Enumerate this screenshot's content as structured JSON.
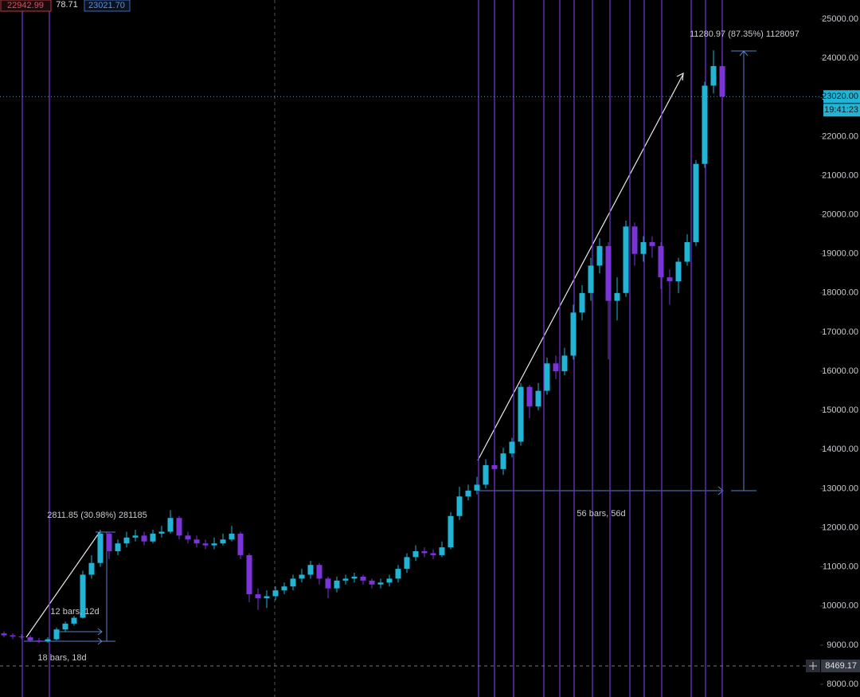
{
  "chart_data": {
    "type": "candlestick",
    "header": {
      "low": "22942.99",
      "change": "78.71",
      "high": "23021.70"
    },
    "annotations": {
      "big_move": "11280.97 (87.35%) 1128097",
      "big_bars": "56 bars, 56d",
      "small_move": "2811.85 (30.98%) 281185",
      "small_bars": "12 bars, 12d",
      "range_bars": "18 bars, 18d"
    },
    "last_price": {
      "value": 23020,
      "label": "23020.00"
    },
    "countdown": "19:41:23",
    "crosshair_price": 8469.17,
    "up_color": "#22b4d4",
    "down_color": "#7a34d8",
    "ylim": [
      8000,
      25000
    ],
    "yticks": [
      {
        "value": 8000,
        "label": "8000.00"
      },
      {
        "value": 9000,
        "label": "9000.00"
      },
      {
        "value": 10000,
        "label": "10000.00"
      },
      {
        "value": 11000,
        "label": "11000.00"
      },
      {
        "value": 12000,
        "label": "12000.00"
      },
      {
        "value": 13000,
        "label": "13000.00"
      },
      {
        "value": 14000,
        "label": "14000.00"
      },
      {
        "value": 15000,
        "label": "15000.00"
      },
      {
        "value": 16000,
        "label": "16000.00"
      },
      {
        "value": 17000,
        "label": "17000.00"
      },
      {
        "value": 18000,
        "label": "18000.00"
      },
      {
        "value": 19000,
        "label": "19000.00"
      },
      {
        "value": 20000,
        "label": "20000.00"
      },
      {
        "value": 21000,
        "label": "21000.00"
      },
      {
        "value": 22000,
        "label": "22000.00"
      },
      {
        "value": 23000,
        "label": "23000.00"
      },
      {
        "value": 24000,
        "label": "24000.00"
      },
      {
        "value": 25000,
        "label": "25000.00"
      }
    ],
    "open": [
      9300,
      9250,
      9220,
      9200,
      9120,
      9100,
      9150,
      9400,
      9550,
      9700,
      10800,
      11100,
      11850,
      11400,
      11600,
      11750,
      11800,
      11650,
      11850,
      11900,
      12250,
      11800,
      11700,
      11600,
      11550,
      11600,
      11700,
      11850,
      11300,
      10300,
      10200,
      10250,
      10400,
      10500,
      10700,
      10800,
      11050,
      10700,
      10450,
      10650,
      10700,
      10750,
      10650,
      10550,
      10600,
      10700,
      10950,
      11250,
      11400,
      11350,
      11300,
      11500,
      12300,
      12800,
      12950,
      13100,
      13600,
      13500,
      13900,
      14200,
      15600,
      15100,
      15500,
      16200,
      16000,
      16400,
      17500,
      18000,
      18700,
      19200,
      17800,
      18000,
      19700,
      19000,
      19300,
      19200,
      18400,
      18300,
      18800,
      19300,
      21300,
      23300,
      23800
    ],
    "high": [
      9350,
      9300,
      9280,
      9250,
      9180,
      9200,
      9450,
      9600,
      9750,
      10900,
      11300,
      11950,
      11900,
      11700,
      11900,
      11950,
      11900,
      11950,
      12050,
      12450,
      12300,
      11900,
      11800,
      11700,
      11750,
      11850,
      12050,
      11900,
      11350,
      10450,
      10400,
      10500,
      10600,
      10800,
      10950,
      11150,
      11100,
      10750,
      10750,
      10800,
      10850,
      10800,
      10700,
      10700,
      10800,
      11050,
      11350,
      11550,
      11500,
      11450,
      11650,
      12400,
      13050,
      13100,
      13300,
      13750,
      13800,
      14050,
      14300,
      15700,
      15650,
      15700,
      16350,
      16400,
      16600,
      17700,
      18200,
      18900,
      19400,
      19300,
      18400,
      19850,
      19800,
      19450,
      19450,
      19300,
      18600,
      18900,
      19500,
      21400,
      23400,
      24200,
      24100
    ],
    "low": [
      9200,
      9150,
      9150,
      9080,
      9050,
      9060,
      9120,
      9350,
      9500,
      9680,
      10700,
      11000,
      11200,
      11300,
      11500,
      11650,
      11550,
      11600,
      11750,
      11850,
      11700,
      11600,
      11500,
      11450,
      11450,
      11550,
      11650,
      11200,
      10100,
      9900,
      9950,
      10150,
      10300,
      10400,
      10600,
      10700,
      10550,
      10200,
      10350,
      10550,
      10600,
      10550,
      10450,
      10450,
      10500,
      10600,
      10850,
      11150,
      11250,
      11200,
      11250,
      11450,
      12200,
      12700,
      12850,
      13000,
      13250,
      13350,
      13800,
      14100,
      14800,
      15000,
      15400,
      15800,
      15900,
      16300,
      17300,
      17800,
      18500,
      16300,
      17300,
      17900,
      18700,
      18800,
      18900,
      18100,
      17700,
      18000,
      18700,
      19200,
      21200,
      23100,
      22000
    ],
    "close": [
      9250,
      9220,
      9200,
      9120,
      9100,
      9150,
      9400,
      9550,
      9700,
      10800,
      11100,
      11850,
      11400,
      11600,
      11750,
      11800,
      11650,
      11850,
      11900,
      12250,
      11800,
      11700,
      11600,
      11550,
      11600,
      11700,
      11850,
      11300,
      10300,
      10200,
      10250,
      10400,
      10500,
      10700,
      10800,
      11050,
      10700,
      10450,
      10650,
      10700,
      10750,
      10650,
      10550,
      10600,
      10700,
      10950,
      11250,
      11400,
      11350,
      11300,
      11500,
      12300,
      12800,
      12950,
      13100,
      13600,
      13500,
      13900,
      14200,
      15600,
      15100,
      15500,
      16200,
      16000,
      16400,
      17500,
      18000,
      18700,
      19200,
      17800,
      18000,
      19700,
      19000,
      19300,
      19200,
      18400,
      18300,
      18800,
      19300,
      21300,
      23300,
      23800,
      23020
    ]
  }
}
